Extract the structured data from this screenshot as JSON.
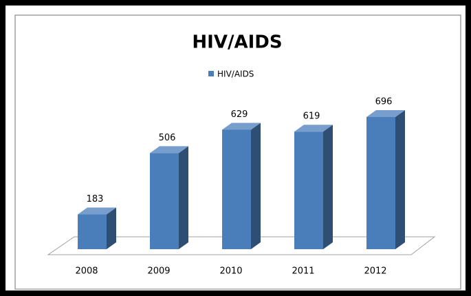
{
  "chart_data": {
    "type": "bar3d",
    "title": "HIV/AIDS",
    "categories": [
      "2008",
      "2009",
      "2010",
      "2011",
      "2012"
    ],
    "series": [
      {
        "name": "HIV/AIDS",
        "color": "#4a7ebb",
        "values": [
          183,
          506,
          629,
          619,
          696
        ]
      }
    ]
  }
}
